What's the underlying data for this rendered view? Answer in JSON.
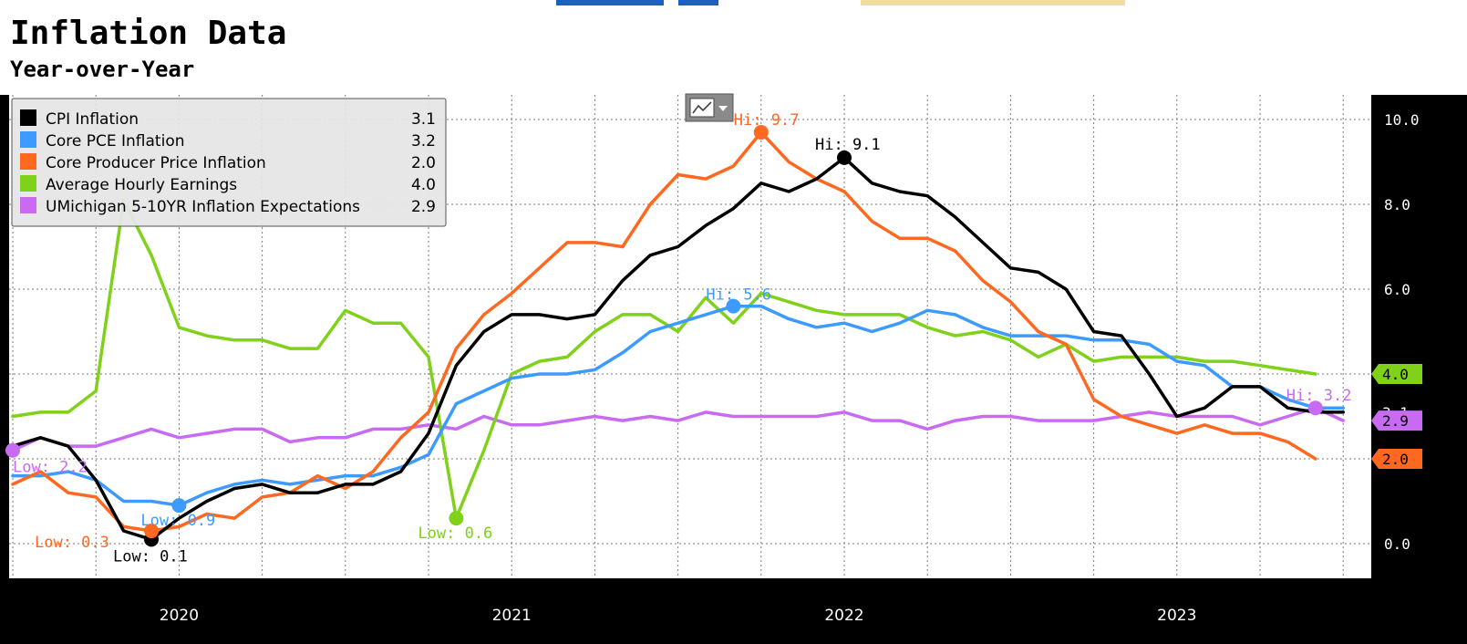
{
  "header": {
    "title": "Inflation Data",
    "subtitle": "Year-over-Year"
  },
  "chart_data": {
    "type": "line",
    "x_ticks": [
      "2020",
      "2021",
      "2022",
      "2023"
    ],
    "y_ticks": [
      "0.0",
      "2.0",
      "4.0",
      "6.0",
      "8.0",
      "10.0"
    ],
    "ylim": [
      -0.8,
      10.6
    ],
    "grid": true,
    "legend_position": "top-left",
    "series": [
      {
        "name": "CPI Inflation",
        "last": "3.1",
        "color": "#000000",
        "x": [
          0,
          1,
          2,
          3,
          4,
          5,
          6,
          7,
          8,
          9,
          10,
          11,
          12,
          13,
          14,
          15,
          16,
          17,
          18,
          19,
          20,
          21,
          22,
          23,
          24,
          25,
          26,
          27,
          28,
          29,
          30,
          31,
          32,
          33,
          34,
          35,
          36,
          37,
          38,
          39,
          40,
          41,
          42,
          43,
          44,
          45,
          46,
          47,
          48
        ],
        "values": [
          2.3,
          2.5,
          2.3,
          1.5,
          0.3,
          0.1,
          0.6,
          1.0,
          1.3,
          1.4,
          1.2,
          1.2,
          1.4,
          1.4,
          1.7,
          2.6,
          4.2,
          5.0,
          5.4,
          5.4,
          5.3,
          5.4,
          6.2,
          6.8,
          7.0,
          7.5,
          7.9,
          8.5,
          8.3,
          8.6,
          9.1,
          8.5,
          8.3,
          8.2,
          7.7,
          7.1,
          6.5,
          6.4,
          6.0,
          5.0,
          4.9,
          4.0,
          3.0,
          3.2,
          3.7,
          3.7,
          3.2,
          3.1,
          3.1
        ]
      },
      {
        "name": "Core PCE Inflation",
        "last": "3.2",
        "color": "#3d9bff",
        "x": [
          0,
          1,
          2,
          3,
          4,
          5,
          6,
          7,
          8,
          9,
          10,
          11,
          12,
          13,
          14,
          15,
          16,
          17,
          18,
          19,
          20,
          21,
          22,
          23,
          24,
          25,
          26,
          27,
          28,
          29,
          30,
          31,
          32,
          33,
          34,
          35,
          36,
          37,
          38,
          39,
          40,
          41,
          42,
          43,
          44,
          45,
          46,
          47,
          48
        ],
        "values": [
          1.6,
          1.6,
          1.7,
          1.5,
          1.0,
          1.0,
          0.9,
          1.2,
          1.4,
          1.5,
          1.4,
          1.5,
          1.6,
          1.6,
          1.8,
          2.1,
          3.3,
          3.6,
          3.9,
          4.0,
          4.0,
          4.1,
          4.5,
          5.0,
          5.2,
          5.4,
          5.6,
          5.6,
          5.3,
          5.1,
          5.2,
          5.0,
          5.2,
          5.5,
          5.4,
          5.1,
          4.9,
          4.9,
          4.9,
          4.8,
          4.8,
          4.7,
          4.3,
          4.2,
          3.7,
          3.7,
          3.4,
          3.2,
          3.2
        ]
      },
      {
        "name": "Core Producer Price Inflation",
        "last": "2.0",
        "color": "#ff6820",
        "x": [
          0,
          1,
          2,
          3,
          4,
          5,
          6,
          7,
          8,
          9,
          10,
          11,
          12,
          13,
          14,
          15,
          16,
          17,
          18,
          19,
          20,
          21,
          22,
          23,
          24,
          25,
          26,
          27,
          28,
          29,
          30,
          31,
          32,
          33,
          34,
          35,
          36,
          37,
          38,
          39,
          40,
          41,
          42,
          43,
          44,
          45,
          46,
          47
        ],
        "values": [
          1.4,
          1.7,
          1.2,
          1.1,
          0.4,
          0.3,
          0.4,
          0.7,
          0.6,
          1.1,
          1.2,
          1.6,
          1.3,
          1.7,
          2.5,
          3.1,
          4.6,
          5.4,
          5.9,
          6.5,
          7.1,
          7.1,
          7.0,
          8.0,
          8.7,
          8.6,
          8.9,
          9.7,
          9.0,
          8.6,
          8.3,
          7.6,
          7.2,
          7.2,
          6.9,
          6.2,
          5.7,
          5.0,
          4.7,
          3.4,
          3.0,
          2.8,
          2.6,
          2.8,
          2.6,
          2.6,
          2.4,
          2.0
        ]
      },
      {
        "name": "Average Hourly Earnings",
        "last": "4.0",
        "color": "#7fd11a",
        "x": [
          0,
          1,
          2,
          3,
          4,
          5,
          6,
          7,
          8,
          9,
          10,
          11,
          12,
          13,
          14,
          15,
          16,
          17,
          18,
          19,
          20,
          21,
          22,
          23,
          24,
          25,
          26,
          27,
          28,
          29,
          30,
          31,
          32,
          33,
          34,
          35,
          36,
          37,
          38,
          39,
          40,
          41,
          42,
          43,
          44,
          45,
          46,
          47
        ],
        "values": [
          3.0,
          3.1,
          3.1,
          3.6,
          8.1,
          6.8,
          5.1,
          4.9,
          4.8,
          4.8,
          4.6,
          4.6,
          5.5,
          5.2,
          5.2,
          4.4,
          0.6,
          2.2,
          4.0,
          4.3,
          4.4,
          5.0,
          5.4,
          5.4,
          5.0,
          5.8,
          5.2,
          5.9,
          5.7,
          5.5,
          5.4,
          5.4,
          5.4,
          5.1,
          4.9,
          5.0,
          4.8,
          4.4,
          4.7,
          4.3,
          4.4,
          4.4,
          4.4,
          4.3,
          4.3,
          4.2,
          4.1,
          4.0
        ]
      },
      {
        "name": "UMichigan 5-10YR Inflation Expectations",
        "last": "2.9",
        "color": "#c86bf2",
        "x": [
          0,
          1,
          2,
          3,
          4,
          5,
          6,
          7,
          8,
          9,
          10,
          11,
          12,
          13,
          14,
          15,
          16,
          17,
          18,
          19,
          20,
          21,
          22,
          23,
          24,
          25,
          26,
          27,
          28,
          29,
          30,
          31,
          32,
          33,
          34,
          35,
          36,
          37,
          38,
          39,
          40,
          41,
          42,
          43,
          44,
          45,
          46,
          47,
          48
        ],
        "values": [
          2.2,
          2.5,
          2.3,
          2.3,
          2.5,
          2.7,
          2.5,
          2.6,
          2.7,
          2.7,
          2.4,
          2.5,
          2.5,
          2.7,
          2.7,
          2.8,
          2.7,
          3.0,
          2.8,
          2.8,
          2.9,
          3.0,
          2.9,
          3.0,
          2.9,
          3.1,
          3.0,
          3.0,
          3.0,
          3.0,
          3.1,
          2.9,
          2.9,
          2.7,
          2.9,
          3.0,
          3.0,
          2.9,
          2.9,
          2.9,
          3.0,
          3.1,
          3.0,
          3.0,
          3.0,
          2.8,
          3.0,
          3.2,
          2.9
        ]
      }
    ],
    "annotations": [
      {
        "series": 0,
        "x": 30,
        "y": 9.1,
        "label": "Hi: 9.1",
        "color": "#000000"
      },
      {
        "series": 0,
        "x": 5,
        "y": 0.1,
        "label": "Low: 0.1",
        "color": "#000000"
      },
      {
        "series": 1,
        "x": 26,
        "y": 5.6,
        "label": "Hi: 5.6",
        "color": "#3d9bff"
      },
      {
        "series": 1,
        "x": 6,
        "y": 0.9,
        "label": "Low: 0.9",
        "color": "#3d9bff"
      },
      {
        "series": 2,
        "x": 27,
        "y": 9.7,
        "label": "Hi: 9.7",
        "color": "#ff6820"
      },
      {
        "series": 2,
        "x": 5,
        "y": 0.3,
        "label": "Low: 0.3",
        "color": "#ff6820"
      },
      {
        "series": 3,
        "x": 16,
        "y": 0.6,
        "label": "Low: 0.6",
        "color": "#7fd11a"
      },
      {
        "series": 4,
        "x": 47,
        "y": 3.2,
        "label": "Hi: 3.2",
        "color": "#c86bf2"
      },
      {
        "series": 4,
        "x": 0,
        "y": 2.2,
        "label": "Low: 2.2",
        "color": "#c86bf2"
      }
    ],
    "last_value_flags": [
      {
        "label": "4.0",
        "y": 4.0,
        "bg": "#7fd11a",
        "text": "#000000"
      },
      {
        "label": "3.1",
        "y": 3.1,
        "bg": "#000000",
        "text": "#ffffff"
      },
      {
        "label": "2.9",
        "y": 2.9,
        "bg": "#c86bf2",
        "text": "#000000"
      },
      {
        "label": "2.0",
        "y": 2.0,
        "bg": "#ff6820",
        "text": "#000000"
      }
    ]
  }
}
